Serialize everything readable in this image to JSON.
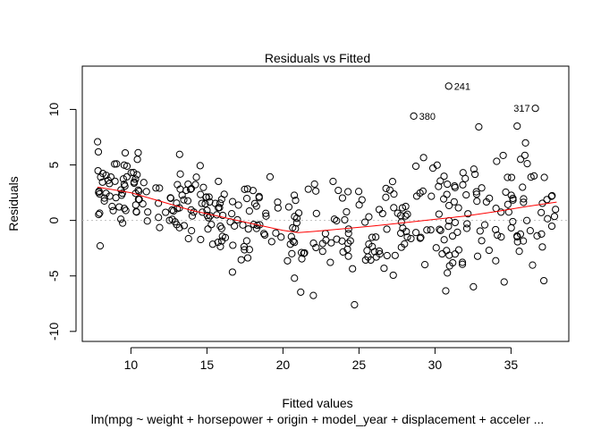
{
  "chart_data": {
    "type": "scatter",
    "title": "Residuals vs Fitted",
    "xlabel": "Fitted values",
    "ylabel": "Residuals",
    "subtitle": "lm(mpg ~ weight + horsepower + origin + model_year + displacement + acceler ...",
    "xlim": [
      6.8,
      38.8
    ],
    "ylim": [
      -10.9,
      13.9
    ],
    "xticks": [
      10,
      15,
      20,
      25,
      30,
      35
    ],
    "yticks": [
      -10,
      -5,
      0,
      5,
      10
    ],
    "reference_line": 0,
    "points_summary": "approx. 392 residual points",
    "smooth": {
      "x": [
        7.8,
        10,
        12,
        14,
        16,
        18,
        20,
        21,
        22,
        24,
        26,
        28,
        30,
        32,
        34,
        36,
        38
      ],
      "y": [
        3.0,
        2.5,
        1.7,
        0.9,
        0.3,
        -0.3,
        -0.9,
        -1.1,
        -1.0,
        -0.75,
        -0.5,
        -0.2,
        0.1,
        0.4,
        0.8,
        1.25,
        1.65
      ]
    },
    "outliers": [
      {
        "label": "241",
        "x": 30.9,
        "y": 12.1
      },
      {
        "label": "380",
        "x": 28.6,
        "y": 9.4
      },
      {
        "label": "317",
        "x": 36.6,
        "y": 10.1
      }
    ],
    "colors": {
      "points": "#000000",
      "smooth": "#ff0000",
      "reference": "#bebebe"
    }
  }
}
